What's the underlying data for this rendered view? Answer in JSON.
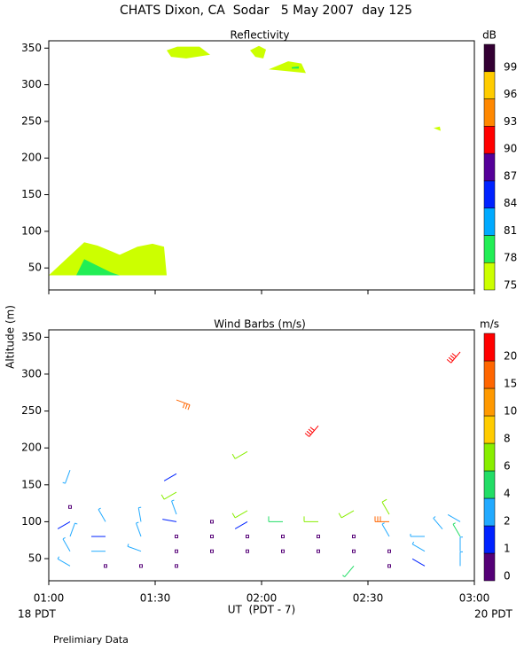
{
  "title": "CHATS Dixon, CA  Sodar   5 May 2007  day 125",
  "y_label": "Altitude (m)",
  "x_label": "UT  (PDT - 7)",
  "x_left_note": "18 PDT",
  "x_right_note": "20 PDT",
  "footer": "Prelimiary Data",
  "chart_data": [
    {
      "type": "contour",
      "title": "Reflectivity",
      "xlim": [
        60,
        180
      ],
      "xticks": [
        60,
        90,
        120,
        150,
        180
      ],
      "ylim": [
        20,
        360
      ],
      "yticks": [
        50,
        100,
        150,
        200,
        250,
        300,
        350
      ],
      "colorbar": {
        "unit": "dB",
        "ticks": [
          75,
          78,
          81,
          84,
          87,
          90,
          93,
          96,
          99
        ],
        "colors": [
          "#ccff00",
          "#22ee55",
          "#00aaff",
          "#0022ff",
          "#550099",
          "#ff0000",
          "#ff8800",
          "#ffcc00",
          "#330033"
        ]
      },
      "regions": [
        {
          "level": 75,
          "points": [
            [
              60,
              40
            ],
            [
              70,
              85
            ],
            [
              73.75,
              80.5
            ],
            [
              80,
              68
            ],
            [
              85,
              79
            ],
            [
              89.25,
              83
            ],
            [
              92.5,
              79
            ],
            [
              93.25,
              40
            ]
          ]
        },
        {
          "level": 78,
          "points": [
            [
              67.75,
              40
            ],
            [
              70,
              62
            ],
            [
              72.5,
              56
            ],
            [
              77.5,
              44
            ],
            [
              80,
              40
            ]
          ]
        },
        {
          "level": 75,
          "points": [
            [
              93.25,
              347
            ],
            [
              96.25,
              352
            ],
            [
              102.5,
              352
            ],
            [
              105.5,
              341
            ],
            [
              98.75,
              336
            ],
            [
              94.5,
              338
            ]
          ]
        },
        {
          "level": 75,
          "points": [
            [
              116.75,
              347
            ],
            [
              119.25,
              353
            ],
            [
              121.25,
              348
            ],
            [
              120.5,
              336
            ],
            [
              118.25,
              338
            ]
          ]
        },
        {
          "level": 75,
          "points": [
            [
              122,
              321
            ],
            [
              127.5,
              332
            ],
            [
              131.25,
              329
            ],
            [
              132.5,
              316
            ],
            [
              126.25,
              319
            ]
          ]
        },
        {
          "level": 78,
          "points": [
            [
              128.5,
              324
            ],
            [
              130.5,
              325
            ],
            [
              130.5,
              322
            ],
            [
              128.5,
              322
            ]
          ]
        },
        {
          "level": 75,
          "points": [
            [
              168.5,
              241
            ],
            [
              170.25,
              243
            ],
            [
              170.5,
              237
            ]
          ]
        }
      ]
    },
    {
      "type": "barbs",
      "title": "Wind Barbs (m/s)",
      "xlim": [
        60,
        180
      ],
      "xticks": [
        {
          "value": 60,
          "label": "01:00"
        },
        {
          "value": 90,
          "label": "01:30"
        },
        {
          "value": 120,
          "label": "02:00"
        },
        {
          "value": 150,
          "label": "02:30"
        },
        {
          "value": 180,
          "label": "03:00"
        }
      ],
      "ylim": [
        20,
        360
      ],
      "yticks": [
        50,
        100,
        150,
        200,
        250,
        300,
        350
      ],
      "colorbar": {
        "unit": "m/s",
        "ticks": [
          0,
          1,
          2,
          4,
          6,
          8,
          10,
          15,
          20
        ],
        "colors": [
          "#550077",
          "#0022ff",
          "#22aaff",
          "#22dd66",
          "#88ee00",
          "#ffcc00",
          "#ff9900",
          "#ff6600",
          "#ff0000"
        ]
      },
      "barbs": [
        {
          "t": 66,
          "alt": 40,
          "speed": 3,
          "dir": 300
        },
        {
          "t": 66,
          "alt": 60,
          "speed": 3,
          "dir": 330
        },
        {
          "t": 66,
          "alt": 80,
          "speed": 3,
          "dir": 20
        },
        {
          "t": 66,
          "alt": 100,
          "speed": 1,
          "dir": 240
        },
        {
          "t": 66,
          "alt": 120,
          "speed": 0,
          "dir": 0
        },
        {
          "t": 66,
          "alt": 170,
          "speed": 3,
          "dir": 200
        },
        {
          "t": 76,
          "alt": 40,
          "speed": 0,
          "dir": 0
        },
        {
          "t": 76,
          "alt": 60,
          "speed": 2,
          "dir": 270
        },
        {
          "t": 76,
          "alt": 80,
          "speed": 1,
          "dir": 270
        },
        {
          "t": 76,
          "alt": 100,
          "speed": 3,
          "dir": 330
        },
        {
          "t": 86,
          "alt": 40,
          "speed": 0,
          "dir": 0
        },
        {
          "t": 86,
          "alt": 60,
          "speed": 3,
          "dir": 290
        },
        {
          "t": 86,
          "alt": 80,
          "speed": 3,
          "dir": 340
        },
        {
          "t": 86,
          "alt": 100,
          "speed": 3,
          "dir": 350
        },
        {
          "t": 96,
          "alt": 40,
          "speed": 0,
          "dir": 0
        },
        {
          "t": 96,
          "alt": 60,
          "speed": 0,
          "dir": 0
        },
        {
          "t": 96,
          "alt": 80,
          "speed": 0,
          "dir": 0
        },
        {
          "t": 96,
          "alt": 100,
          "speed": 1,
          "dir": 280
        },
        {
          "t": 96,
          "alt": 110,
          "speed": 3,
          "dir": 340
        },
        {
          "t": 96,
          "alt": 140,
          "speed": 6,
          "dir": 240
        },
        {
          "t": 96,
          "alt": 165,
          "speed": 1,
          "dir": 240
        },
        {
          "t": 96,
          "alt": 265,
          "speed": 15,
          "dir": 110
        },
        {
          "t": 106,
          "alt": 60,
          "speed": 0,
          "dir": 0
        },
        {
          "t": 106,
          "alt": 80,
          "speed": 0,
          "dir": 0
        },
        {
          "t": 106,
          "alt": 100,
          "speed": 0,
          "dir": 0
        },
        {
          "t": 116,
          "alt": 60,
          "speed": 0,
          "dir": 0
        },
        {
          "t": 116,
          "alt": 80,
          "speed": 0,
          "dir": 0
        },
        {
          "t": 116,
          "alt": 100,
          "speed": 1,
          "dir": 240
        },
        {
          "t": 116,
          "alt": 115,
          "speed": 6,
          "dir": 240
        },
        {
          "t": 116,
          "alt": 195,
          "speed": 6,
          "dir": 240
        },
        {
          "t": 126,
          "alt": 60,
          "speed": 0,
          "dir": 0
        },
        {
          "t": 126,
          "alt": 80,
          "speed": 0,
          "dir": 0
        },
        {
          "t": 126,
          "alt": 100,
          "speed": 5,
          "dir": 270
        },
        {
          "t": 136,
          "alt": 60,
          "speed": 0,
          "dir": 0
        },
        {
          "t": 136,
          "alt": 80,
          "speed": 0,
          "dir": 0
        },
        {
          "t": 136,
          "alt": 100,
          "speed": 6,
          "dir": 270
        },
        {
          "t": 136,
          "alt": 230,
          "speed": 20,
          "dir": 220
        },
        {
          "t": 146,
          "alt": 40,
          "speed": 4,
          "dir": 220
        },
        {
          "t": 146,
          "alt": 60,
          "speed": 0,
          "dir": 0
        },
        {
          "t": 146,
          "alt": 80,
          "speed": 0,
          "dir": 0
        },
        {
          "t": 146,
          "alt": 115,
          "speed": 6,
          "dir": 240
        },
        {
          "t": 156,
          "alt": 40,
          "speed": 0,
          "dir": 0
        },
        {
          "t": 156,
          "alt": 60,
          "speed": 0,
          "dir": 0
        },
        {
          "t": 156,
          "alt": 80,
          "speed": 3,
          "dir": 330
        },
        {
          "t": 156,
          "alt": 100,
          "speed": 15,
          "dir": 270
        },
        {
          "t": 156,
          "alt": 110,
          "speed": 6,
          "dir": 330
        },
        {
          "t": 166,
          "alt": 40,
          "speed": 1,
          "dir": 300
        },
        {
          "t": 166,
          "alt": 60,
          "speed": 3,
          "dir": 300
        },
        {
          "t": 166,
          "alt": 80,
          "speed": 3,
          "dir": 270
        },
        {
          "t": 171,
          "alt": 90,
          "speed": 3,
          "dir": 320
        },
        {
          "t": 176,
          "alt": 40,
          "speed": 3,
          "dir": 0
        },
        {
          "t": 176,
          "alt": 60,
          "speed": 3,
          "dir": 0
        },
        {
          "t": 176,
          "alt": 80,
          "speed": 4,
          "dir": 330
        },
        {
          "t": 176,
          "alt": 100,
          "speed": 2,
          "dir": 300
        },
        {
          "t": 176,
          "alt": 330,
          "speed": 20,
          "dir": 220
        }
      ]
    }
  ]
}
